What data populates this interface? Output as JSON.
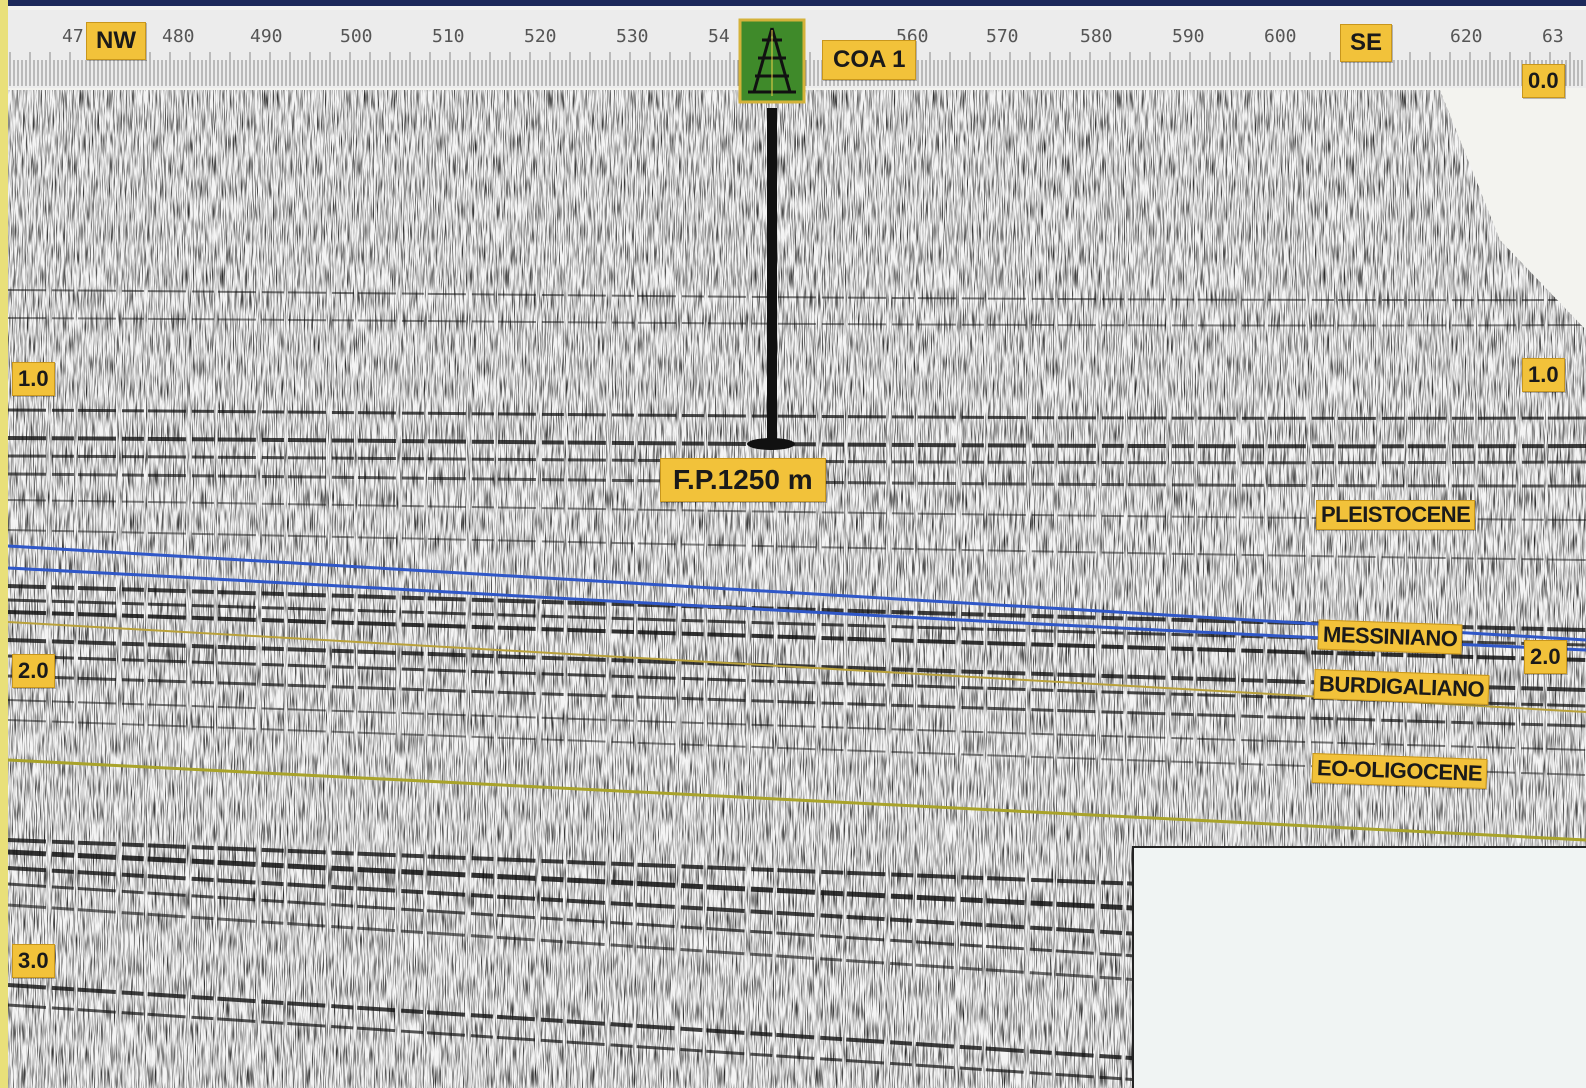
{
  "header": {
    "direction_left": "NW",
    "direction_right": "SE",
    "trace_ticks": [
      "47",
      "480",
      "490",
      "500",
      "510",
      "520",
      "530",
      "54",
      "560",
      "570",
      "580",
      "590",
      "600",
      "620",
      "63"
    ]
  },
  "well": {
    "name": "COA 1",
    "final_depth_label": "F.P.1250 m",
    "icon": "drilling-rig-icon"
  },
  "time_axis": {
    "left_labels": [
      "1.0",
      "2.0",
      "3.0"
    ],
    "right_labels": [
      "0.0",
      "1.0",
      "2.0"
    ]
  },
  "formations": [
    "PLEISTOCENE",
    "MESSINIANO",
    "BURDIGALIANO",
    "EO-OLIGOCENE"
  ],
  "colors": {
    "label_fill": "#f2c23a",
    "horizon_messiniano": "#2f57c8",
    "horizon_burdigaliano": "#b9a13a",
    "horizon_eo_oligocene": "#a9a32a",
    "well_icon_fill": "#3f8a2a"
  }
}
